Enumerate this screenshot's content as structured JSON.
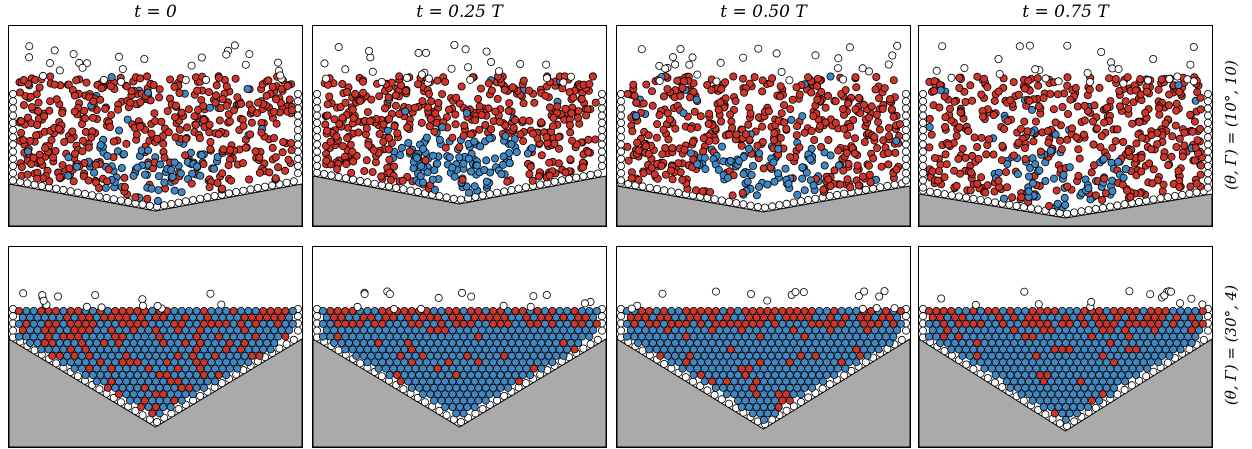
{
  "column_titles": [
    "t = 0",
    "t = 0.25 T",
    "t = 0.50 T",
    "t = 0.75 T"
  ],
  "row_labels": [
    "(θ, Γ) = (10°, 10)",
    "(θ, Γ) = (30°, 4)"
  ],
  "colors": {
    "red_particle": "#d0352b",
    "blue_particle": "#3f88c5",
    "white_particle": "#ffffff",
    "floor": "#aaaaaa",
    "outline": "#000000"
  },
  "panels": [
    {
      "row": 0,
      "col": 0,
      "pattern": "scattered",
      "blue_fraction": 0.18
    },
    {
      "row": 0,
      "col": 1,
      "pattern": "scattered",
      "blue_fraction": 0.3
    },
    {
      "row": 0,
      "col": 2,
      "pattern": "scattered",
      "blue_fraction": 0.26
    },
    {
      "row": 0,
      "col": 3,
      "pattern": "scattered",
      "blue_fraction": 0.2
    },
    {
      "row": 1,
      "col": 0,
      "pattern": "packed",
      "blue_fraction": 0.72
    },
    {
      "row": 1,
      "col": 1,
      "pattern": "packed",
      "blue_fraction": 0.93
    },
    {
      "row": 1,
      "col": 2,
      "pattern": "packed",
      "blue_fraction": 0.9
    },
    {
      "row": 1,
      "col": 3,
      "pattern": "packed",
      "blue_fraction": 0.86
    }
  ]
}
